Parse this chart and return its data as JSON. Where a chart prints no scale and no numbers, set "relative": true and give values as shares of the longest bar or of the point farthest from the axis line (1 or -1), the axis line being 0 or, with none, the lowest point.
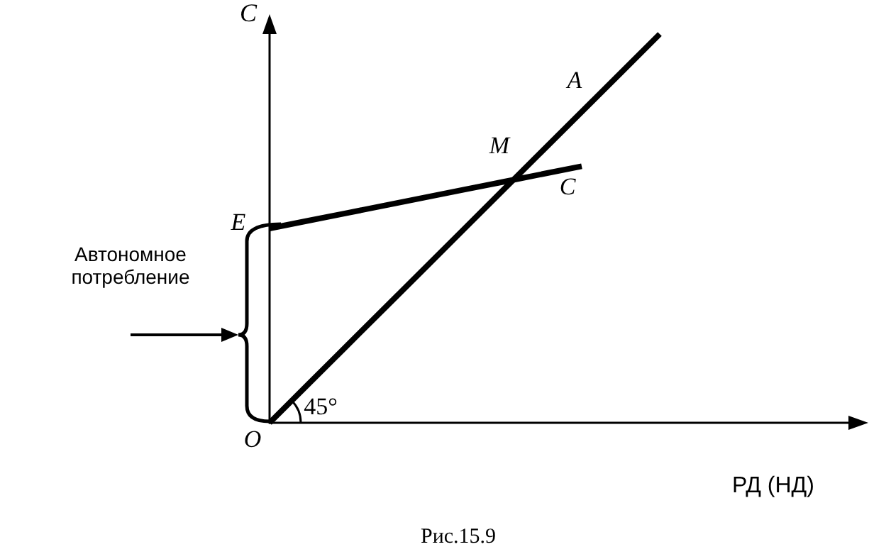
{
  "chart_data": {
    "type": "line",
    "relative": true,
    "title": "Рис.15.9",
    "xlabel": "РД (НД)",
    "ylabel": "C",
    "categories": [
      null,
      null,
      null,
      null,
      null,
      null,
      null,
      null,
      null,
      null,
      null,
      null,
      null,
      null,
      null,
      null
    ],
    "series": [
      {
        "color": "#000000",
        "values": [
          0,
          0.1,
          0.2,
          0.3,
          0.4,
          0.5,
          0.6,
          0.7,
          0.8,
          0.9,
          1.0,
          null,
          null,
          null,
          null,
          null
        ]
      },
      {
        "color": "#000000",
        "values": [
          0.5,
          0.52,
          0.54,
          0.56,
          0.58,
          0.6,
          0.62,
          0.64,
          0.66,
          null,
          null,
          null,
          null,
          null,
          null,
          null
        ]
      }
    ],
    "annotations": [
      "A",
      "M",
      "C",
      "E",
      "Автономное потребление",
      "O",
      "45°"
    ],
    "grid": false,
    "marker": "none"
  }
}
